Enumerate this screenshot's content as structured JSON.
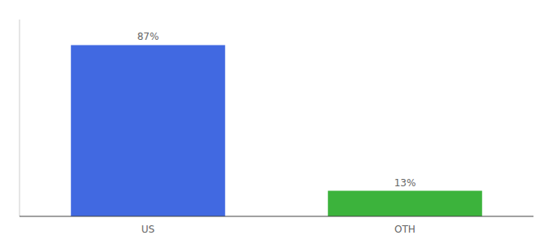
{
  "chart_data": {
    "type": "bar",
    "categories": [
      "US",
      "OTH"
    ],
    "values": [
      87,
      13
    ],
    "colors": [
      "#4169e1",
      "#3cb33c"
    ],
    "ylim": [
      0,
      100
    ],
    "data_labels": true,
    "value_labels": [
      "87%",
      "13%"
    ],
    "tick_labels": "x",
    "grid": false
  }
}
